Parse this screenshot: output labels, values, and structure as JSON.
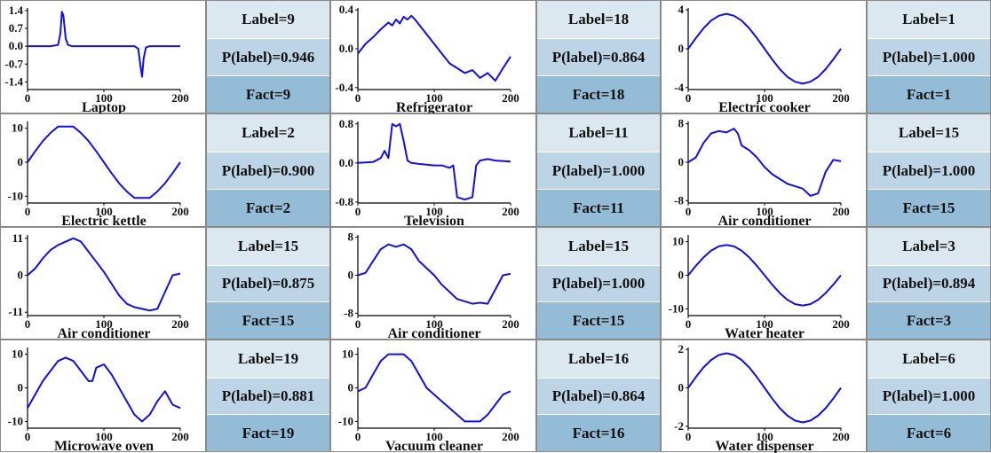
{
  "theme": {
    "line_color": "#1010e0",
    "label_bg": "#dce8f0",
    "prob_bg": "#bcd4e6",
    "fact_bg": "#94bcd6"
  },
  "chart_data": [
    {
      "type": "line",
      "title": "Laptop",
      "label": "Label=9",
      "prob": "P(label)=0.946",
      "fact": "Fact=9",
      "ylim": [
        -1.7,
        1.5
      ],
      "yticks": [
        "1.4",
        "0.7",
        "0.0",
        "-0.7",
        "-1.4"
      ],
      "ytick_values": [
        1.4,
        0.7,
        0,
        -0.7,
        -1.4
      ],
      "xlim": [
        0,
        200
      ],
      "xticks": [
        "0",
        "100",
        "200"
      ],
      "xtick_values": [
        0,
        100,
        200
      ],
      "x": [
        0,
        30,
        40,
        43,
        45,
        47,
        50,
        53,
        58,
        100,
        140,
        145,
        148,
        150,
        152,
        155,
        160,
        200
      ],
      "y": [
        0,
        0,
        0.05,
        0.5,
        1.35,
        1.2,
        0.3,
        0.05,
        0,
        0,
        0,
        -0.1,
        -0.8,
        -1.2,
        -0.5,
        -0.05,
        0,
        0
      ]
    },
    {
      "type": "line",
      "title": "Refrigerator",
      "label": "Label=18",
      "prob": "P(label)=0.864",
      "fact": "Fact=18",
      "ylim": [
        -0.42,
        0.42
      ],
      "yticks": [
        "0.4",
        "0.0",
        "-0.4"
      ],
      "ytick_values": [
        0.4,
        0,
        -0.4
      ],
      "xlim": [
        0,
        200
      ],
      "xticks": [
        "0",
        "100",
        "200"
      ],
      "xtick_values": [
        0,
        100,
        200
      ],
      "x": [
        0,
        10,
        20,
        30,
        40,
        45,
        50,
        55,
        60,
        65,
        70,
        75,
        80,
        90,
        100,
        110,
        120,
        130,
        140,
        150,
        160,
        170,
        180,
        190,
        200
      ],
      "y": [
        -0.05,
        0.05,
        0.12,
        0.2,
        0.27,
        0.24,
        0.3,
        0.26,
        0.33,
        0.3,
        0.34,
        0.3,
        0.25,
        0.15,
        0.05,
        -0.05,
        -0.15,
        -0.2,
        -0.25,
        -0.22,
        -0.3,
        -0.25,
        -0.33,
        -0.2,
        -0.08
      ]
    },
    {
      "type": "line",
      "title": "Electric cooker",
      "label": "Label=1",
      "prob": "P(label)=1.000",
      "fact": "Fact=1",
      "ylim": [
        -4.2,
        4.2
      ],
      "yticks": [
        "4",
        "0",
        "-4"
      ],
      "ytick_values": [
        4,
        0,
        -4
      ],
      "xlim": [
        0,
        200
      ],
      "xticks": [
        "0",
        "100",
        "200"
      ],
      "xtick_values": [
        0,
        100,
        200
      ],
      "x": [
        0,
        10,
        20,
        30,
        40,
        50,
        60,
        70,
        80,
        90,
        100,
        110,
        120,
        130,
        140,
        150,
        160,
        170,
        180,
        190,
        200
      ],
      "y": [
        0,
        1.1,
        2.1,
        2.9,
        3.4,
        3.6,
        3.4,
        2.9,
        2.1,
        1.1,
        0,
        -1.1,
        -2.1,
        -2.9,
        -3.4,
        -3.6,
        -3.4,
        -2.9,
        -2.1,
        -1.1,
        0
      ]
    },
    {
      "type": "line",
      "title": "Electric kettle",
      "label": "Label=2",
      "prob": "P(label)=0.900",
      "fact": "Fact=2",
      "ylim": [
        -12,
        12
      ],
      "yticks": [
        "10",
        "0",
        "-10"
      ],
      "ytick_values": [
        10,
        0,
        -10
      ],
      "xlim": [
        0,
        200
      ],
      "xticks": [
        "0",
        "100",
        "200"
      ],
      "xtick_values": [
        0,
        100,
        200
      ],
      "x": [
        0,
        10,
        20,
        30,
        40,
        60,
        70,
        80,
        90,
        100,
        110,
        120,
        130,
        140,
        160,
        170,
        180,
        190,
        200
      ],
      "y": [
        0,
        3.2,
        6.2,
        8.6,
        10.5,
        10.5,
        8.6,
        6.2,
        3.2,
        0,
        -3.2,
        -6.2,
        -8.6,
        -10.5,
        -10.5,
        -8.6,
        -6.2,
        -3.2,
        0
      ]
    },
    {
      "type": "line",
      "title": "Television",
      "label": "Label=11",
      "prob": "P(label)=1.000",
      "fact": "Fact=11",
      "ylim": [
        -0.82,
        0.85
      ],
      "yticks": [
        "0.8",
        "0.0",
        "-0.8"
      ],
      "ytick_values": [
        0.8,
        0,
        -0.8
      ],
      "xlim": [
        0,
        200
      ],
      "xticks": [
        "0",
        "100",
        "200"
      ],
      "xtick_values": [
        0,
        100,
        200
      ],
      "x": [
        0,
        20,
        30,
        35,
        40,
        45,
        50,
        55,
        60,
        65,
        70,
        80,
        100,
        110,
        120,
        125,
        130,
        140,
        150,
        155,
        160,
        170,
        180,
        200
      ],
      "y": [
        0,
        0.02,
        0.1,
        0.25,
        0.1,
        0.8,
        0.75,
        0.8,
        0.45,
        0.05,
        0,
        -0.02,
        -0.05,
        -0.05,
        -0.1,
        -0.05,
        -0.7,
        -0.75,
        -0.7,
        -0.05,
        0.05,
        0.08,
        0.05,
        0.03
      ]
    },
    {
      "type": "line",
      "title": "Air conditioner",
      "label": "Label=15",
      "prob": "P(label)=1.000",
      "fact": "Fact=15",
      "ylim": [
        -8.5,
        8.5
      ],
      "yticks": [
        "8",
        "0",
        "-8"
      ],
      "ytick_values": [
        8,
        0,
        -8
      ],
      "xlim": [
        0,
        200
      ],
      "xticks": [
        "0",
        "100",
        "200"
      ],
      "xtick_values": [
        0,
        100,
        200
      ],
      "x": [
        0,
        10,
        20,
        30,
        40,
        50,
        60,
        65,
        70,
        80,
        90,
        100,
        110,
        120,
        130,
        140,
        150,
        160,
        170,
        180,
        190,
        200
      ],
      "y": [
        0,
        1,
        4,
        6,
        6.5,
        6.2,
        7,
        6,
        3.5,
        2.5,
        1,
        -1,
        -2.5,
        -3.5,
        -4.5,
        -5,
        -5.5,
        -7,
        -6.5,
        -2,
        0.5,
        0.2
      ]
    },
    {
      "type": "line",
      "title": "Air conditioner",
      "label": "Label=15",
      "prob": "P(label)=0.875",
      "fact": "Fact=15",
      "ylim": [
        -12,
        12
      ],
      "yticks": [
        "11",
        "0",
        "-11"
      ],
      "ytick_values": [
        11,
        0,
        -11
      ],
      "xlim": [
        0,
        200
      ],
      "xticks": [
        "0",
        "100",
        "200"
      ],
      "xtick_values": [
        0,
        100,
        200
      ],
      "x": [
        0,
        10,
        20,
        30,
        40,
        50,
        60,
        70,
        80,
        90,
        100,
        110,
        120,
        130,
        140,
        150,
        160,
        170,
        180,
        190,
        200
      ],
      "y": [
        0,
        2,
        5,
        7.5,
        9,
        10,
        11,
        10,
        7,
        4,
        1,
        -2.5,
        -6,
        -8.5,
        -9.5,
        -10,
        -10.5,
        -10,
        -5,
        0,
        0.5
      ]
    },
    {
      "type": "line",
      "title": "Air conditioner",
      "label": "Label=15",
      "prob": "P(label)=1.000",
      "fact": "Fact=15",
      "ylim": [
        -8.5,
        8.5
      ],
      "yticks": [
        "8",
        "0",
        "-8"
      ],
      "ytick_values": [
        8,
        0,
        -8
      ],
      "xlim": [
        0,
        200
      ],
      "xticks": [
        "0",
        "100",
        "200"
      ],
      "xtick_values": [
        0,
        100,
        200
      ],
      "x": [
        0,
        10,
        20,
        30,
        40,
        50,
        60,
        70,
        80,
        90,
        100,
        110,
        120,
        130,
        140,
        150,
        160,
        170,
        180,
        190,
        200
      ],
      "y": [
        0,
        0.5,
        3,
        5.5,
        6.5,
        6,
        6.5,
        5.5,
        3,
        1.5,
        0,
        -2,
        -3.5,
        -5,
        -5.5,
        -6,
        -5.8,
        -6,
        -3,
        0,
        0.3
      ]
    },
    {
      "type": "line",
      "title": "Water heater",
      "label": "Label=3",
      "prob": "P(label)=0.894",
      "fact": "Fact=3",
      "ylim": [
        -12,
        12
      ],
      "yticks": [
        "10",
        "0",
        "-10"
      ],
      "ytick_values": [
        10,
        0,
        -10
      ],
      "xlim": [
        0,
        200
      ],
      "xticks": [
        "0",
        "100",
        "200"
      ],
      "xtick_values": [
        0,
        100,
        200
      ],
      "x": [
        0,
        10,
        20,
        30,
        40,
        50,
        60,
        70,
        80,
        90,
        100,
        110,
        120,
        130,
        140,
        150,
        160,
        170,
        180,
        190,
        200
      ],
      "y": [
        0,
        2.8,
        5.3,
        7.3,
        8.6,
        9,
        8.6,
        7.3,
        5.3,
        2.8,
        0,
        -2.8,
        -5.3,
        -7.3,
        -8.6,
        -9,
        -8.6,
        -7.3,
        -5.3,
        -2.8,
        0
      ]
    },
    {
      "type": "line",
      "title": "Microwave oven",
      "label": "Label=19",
      "prob": "P(label)=0.881",
      "fact": "Fact=19",
      "ylim": [
        -12,
        12
      ],
      "yticks": [
        "10",
        "0",
        "-10"
      ],
      "ytick_values": [
        10,
        0,
        -10
      ],
      "xlim": [
        0,
        200
      ],
      "xticks": [
        "0",
        "100",
        "200"
      ],
      "xtick_values": [
        0,
        100,
        200
      ],
      "x": [
        0,
        10,
        20,
        30,
        40,
        50,
        60,
        70,
        80,
        85,
        90,
        100,
        110,
        120,
        130,
        140,
        150,
        160,
        170,
        180,
        190,
        200
      ],
      "y": [
        -6,
        -2,
        2,
        5,
        8,
        9,
        8,
        5,
        2,
        2,
        6,
        7,
        4,
        0,
        -4,
        -8,
        -10,
        -8,
        -4,
        -1,
        -5,
        -6
      ]
    },
    {
      "type": "line",
      "title": "Vacuum cleaner",
      "label": "Label=16",
      "prob": "P(label)=0.864",
      "fact": "Fact=16",
      "ylim": [
        -12,
        12
      ],
      "yticks": [
        "10",
        "0",
        "-10"
      ],
      "ytick_values": [
        10,
        0,
        -10
      ],
      "xlim": [
        0,
        200
      ],
      "xticks": [
        "0",
        "100",
        "200"
      ],
      "xtick_values": [
        0,
        100,
        200
      ],
      "x": [
        0,
        10,
        20,
        30,
        40,
        60,
        70,
        80,
        90,
        100,
        110,
        120,
        130,
        140,
        160,
        170,
        180,
        190,
        200
      ],
      "y": [
        -1,
        0,
        4,
        8,
        10,
        10,
        8,
        4,
        0,
        -2,
        -4,
        -6,
        -8,
        -10,
        -10,
        -8,
        -5,
        -2,
        -1
      ]
    },
    {
      "type": "line",
      "title": "Water dispenser",
      "label": "Label=6",
      "prob": "P(label)=1.000",
      "fact": "Fact=6",
      "ylim": [
        -2.1,
        2.1
      ],
      "yticks": [
        "2",
        "0",
        "-2"
      ],
      "ytick_values": [
        2,
        0,
        -2
      ],
      "xlim": [
        0,
        200
      ],
      "xticks": [
        "0",
        "100",
        "200"
      ],
      "xtick_values": [
        0,
        100,
        200
      ],
      "x": [
        0,
        10,
        20,
        30,
        40,
        50,
        60,
        70,
        80,
        90,
        100,
        110,
        120,
        130,
        140,
        150,
        160,
        170,
        180,
        190,
        200
      ],
      "y": [
        0,
        0.56,
        1.06,
        1.45,
        1.71,
        1.8,
        1.71,
        1.45,
        1.06,
        0.56,
        0,
        -0.56,
        -1.06,
        -1.45,
        -1.71,
        -1.8,
        -1.71,
        -1.45,
        -1.06,
        -0.56,
        0
      ]
    }
  ]
}
